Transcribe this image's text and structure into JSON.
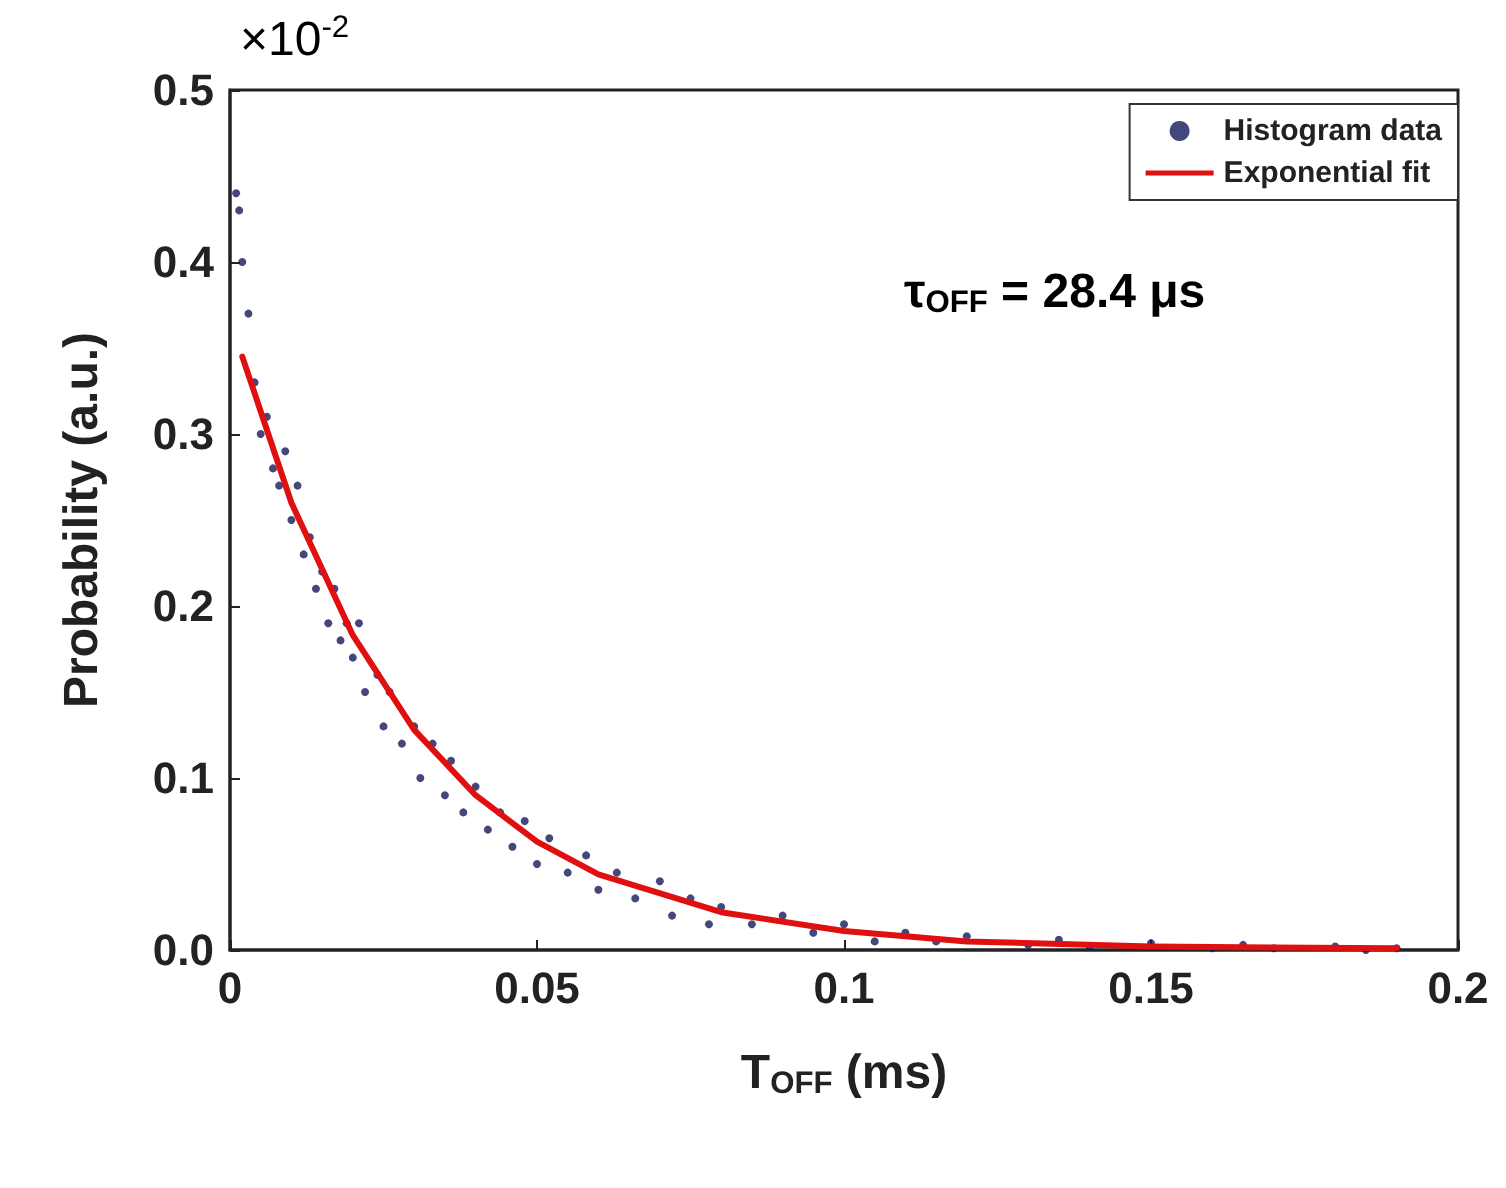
{
  "chart_data": {
    "type": "scatter",
    "xlabel": "T$_{OFF}$ (ms)",
    "ylabel": "Probability (a.u.)",
    "annotations": [
      "×10$^{-2}$",
      "τ$_{OFF}$ = 28.4 μs"
    ],
    "xlim": [
      0,
      0.2
    ],
    "xticks": [
      0,
      0.05,
      0.1,
      0.15,
      0.2
    ],
    "ylim": [
      0,
      0.5
    ],
    "yticks": [
      {
        "value": 0,
        "label": "0.0"
      },
      0.1,
      0.2,
      0.3,
      0.4,
      0.5
    ],
    "grid": false,
    "legend": "top right",
    "series": [
      {
        "name": "Histogram data",
        "marker": "circle",
        "color": "#14195a",
        "x": [
          0.001,
          0.0015,
          0.002,
          0.003,
          0.004,
          0.005,
          0.006,
          0.007,
          0.008,
          0.009,
          0.01,
          0.011,
          0.012,
          0.013,
          0.014,
          0.015,
          0.016,
          0.017,
          0.018,
          0.019,
          0.02,
          0.021,
          0.022,
          0.024,
          0.025,
          0.026,
          0.028,
          0.03,
          0.031,
          0.033,
          0.035,
          0.036,
          0.038,
          0.04,
          0.042,
          0.044,
          0.046,
          0.048,
          0.05,
          0.052,
          0.055,
          0.058,
          0.06,
          0.063,
          0.066,
          0.07,
          0.072,
          0.075,
          0.078,
          0.08,
          0.085,
          0.09,
          0.095,
          0.1,
          0.105,
          0.11,
          0.115,
          0.12,
          0.13,
          0.135,
          0.14,
          0.15,
          0.16,
          0.165,
          0.17,
          0.18,
          0.185,
          0.19
        ],
        "values": [
          0.44,
          0.43,
          0.4,
          0.37,
          0.33,
          0.3,
          0.31,
          0.28,
          0.27,
          0.29,
          0.25,
          0.27,
          0.23,
          0.24,
          0.21,
          0.22,
          0.19,
          0.21,
          0.18,
          0.19,
          0.17,
          0.19,
          0.15,
          0.16,
          0.13,
          0.15,
          0.12,
          0.13,
          0.1,
          0.12,
          0.09,
          0.11,
          0.08,
          0.095,
          0.07,
          0.08,
          0.06,
          0.075,
          0.05,
          0.065,
          0.045,
          0.055,
          0.035,
          0.045,
          0.03,
          0.04,
          0.02,
          0.03,
          0.015,
          0.025,
          0.015,
          0.02,
          0.01,
          0.015,
          0.005,
          0.01,
          0.005,
          0.008,
          0.003,
          0.006,
          0.002,
          0.004,
          0.001,
          0.003,
          0.001,
          0.002,
          0,
          0.001
        ]
      },
      {
        "name": "Exponential fit",
        "type": "line",
        "marker": "none",
        "line_style": "solid",
        "color": "#e01010",
        "x": [
          0.002,
          0.01,
          0.02,
          0.03,
          0.04,
          0.05,
          0.06,
          0.08,
          0.1,
          0.12,
          0.15,
          0.19
        ],
        "values": [
          0.345,
          0.26,
          0.183,
          0.128,
          0.09,
          0.063,
          0.044,
          0.022,
          0.011,
          0.005,
          0.002,
          0.001
        ]
      }
    ]
  }
}
